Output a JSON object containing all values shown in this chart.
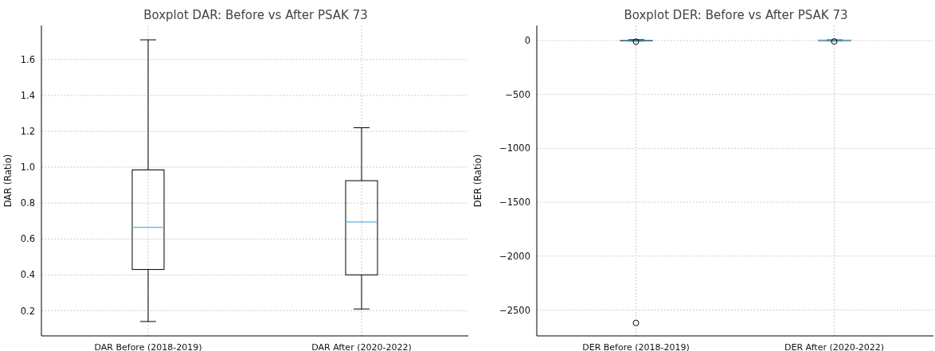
{
  "chart_data": [
    {
      "type": "box",
      "title": "Boxplot DAR: Before vs After PSAK 73",
      "ylabel": "DAR (Ratio)",
      "categories": [
        "DAR Before (2018-2019)",
        "DAR After (2020-2022)"
      ],
      "ylim": [
        0.06,
        1.79
      ],
      "yticks": [
        0.2,
        0.4,
        0.6,
        0.8,
        {
          "value": 1,
          "label": "1.0"
        },
        1.2,
        1.4,
        1.6
      ],
      "grid": true,
      "boxes": [
        {
          "low": 0.14,
          "q1": 0.43,
          "median": 0.665,
          "q3": 0.985,
          "high": 1.71
        },
        {
          "low": 0.21,
          "q1": 0.4,
          "median": 0.695,
          "q3": 0.925,
          "high": 1.22
        }
      ]
    },
    {
      "type": "box",
      "title": "Boxplot DER: Before vs After PSAK 73",
      "ylabel": "DER (Ratio)",
      "categories": [
        "DER Before (2018-2019)",
        "DER After (2020-2022)"
      ],
      "ylim": [
        -2740,
        140
      ],
      "yticks": [
        -2500,
        -2000,
        -1500,
        -1000,
        -500,
        0
      ],
      "grid": true,
      "boxes": [
        {
          "low": -5,
          "q1": 0,
          "median": 1,
          "q3": 2,
          "high": 8,
          "outliers": [
            -10,
            -2620
          ]
        },
        {
          "low": 0,
          "q1": 1,
          "median": 2,
          "q3": 4,
          "high": 6,
          "outliers": [
            -8
          ]
        }
      ]
    }
  ]
}
